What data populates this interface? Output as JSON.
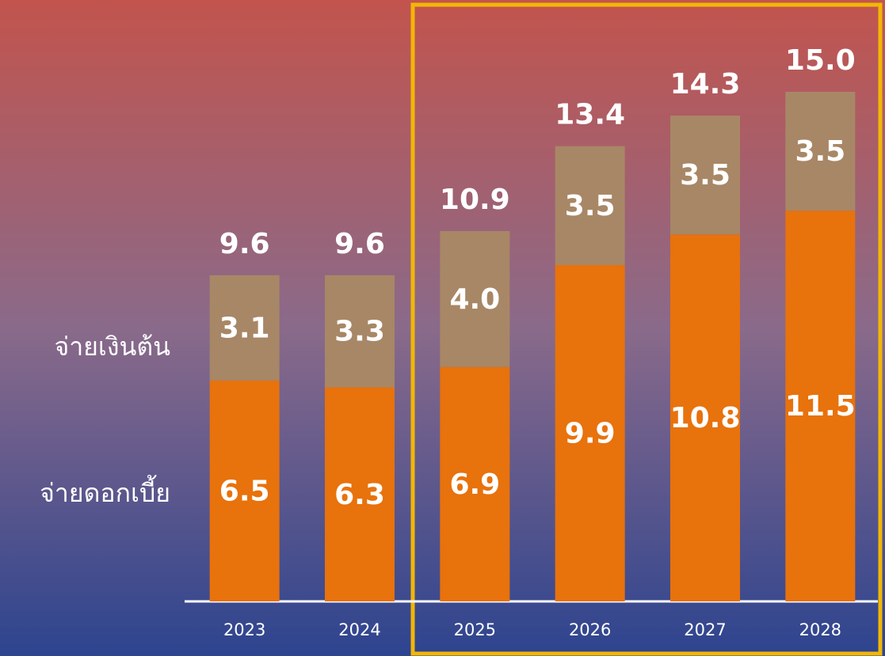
{
  "chart_data": {
    "type": "stacked_bar",
    "categories": [
      "2023",
      "2024",
      "2025",
      "2026",
      "2027",
      "2028"
    ],
    "series": [
      {
        "name": "จ่ายดอกเบี้ย",
        "color": "#e8720c",
        "values": [
          6.5,
          6.3,
          6.9,
          9.9,
          10.8,
          11.5
        ]
      },
      {
        "name": "จ่ายเงินต้น",
        "color": "#a88766",
        "values": [
          3.1,
          3.3,
          4.0,
          3.5,
          3.5,
          3.5
        ],
        "value_labels": [
          "3.1",
          "3.3",
          "4.0",
          "3.5",
          "3.5",
          "3.5"
        ]
      }
    ],
    "totals": {
      "values": [
        9.6,
        9.6,
        10.9,
        13.4,
        14.3,
        15.0
      ],
      "value_labels": [
        "9.6",
        "9.6",
        "10.9",
        "13.4",
        "14.3",
        "15.0"
      ]
    },
    "ylim": [
      0,
      15
    ]
  }
}
